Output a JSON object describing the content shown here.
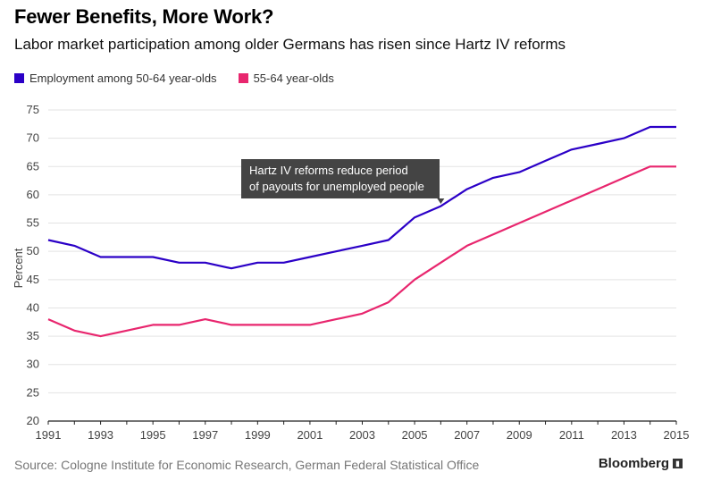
{
  "header": {
    "title": "Fewer Benefits, More Work?",
    "subtitle": "Labor market participation among older Germans has risen since Hartz IV reforms"
  },
  "footer": {
    "source": "Source: Cologne Institute for Economic Research, German Federal Statistical Office",
    "brand": "Bloomberg"
  },
  "colors": {
    "series1": "#2b00c7",
    "series2": "#e8266e",
    "annotation_bg": "#444444"
  },
  "chart_data": {
    "type": "line",
    "ylabel": "Percent",
    "xlabel": "",
    "ylim": [
      20,
      75
    ],
    "xlim": [
      1991,
      2015
    ],
    "y_ticks": [
      20,
      25,
      30,
      35,
      40,
      45,
      50,
      55,
      60,
      65,
      70,
      75
    ],
    "x_ticks": [
      1991,
      1993,
      1995,
      1997,
      1999,
      2001,
      2003,
      2005,
      2007,
      2009,
      2011,
      2013,
      2015
    ],
    "grid": true,
    "legend_position": "top-left",
    "x": [
      1991,
      1992,
      1993,
      1994,
      1995,
      1996,
      1997,
      1998,
      1999,
      2000,
      2001,
      2002,
      2003,
      2004,
      2005,
      2006,
      2007,
      2008,
      2009,
      2010,
      2011,
      2012,
      2013,
      2014,
      2015
    ],
    "series": [
      {
        "name": "Employment among 50-64 year-olds",
        "color": "#2b00c7",
        "values": [
          52,
          51,
          49,
          49,
          49,
          48,
          48,
          47,
          48,
          48,
          49,
          50,
          51,
          52,
          56,
          58,
          61,
          63,
          64,
          66,
          68,
          69,
          70,
          72,
          72
        ]
      },
      {
        "name": "55-64 year-olds",
        "color": "#e8266e",
        "values": [
          38,
          36,
          35,
          36,
          37,
          37,
          38,
          37,
          37,
          37,
          37,
          38,
          39,
          41,
          45,
          48,
          51,
          53,
          55,
          57,
          59,
          61,
          63,
          65,
          65
        ]
      }
    ],
    "annotations": [
      {
        "x": 2006,
        "lines": [
          "Hartz IV reforms reduce period",
          "of payouts for unemployed people"
        ]
      }
    ]
  }
}
